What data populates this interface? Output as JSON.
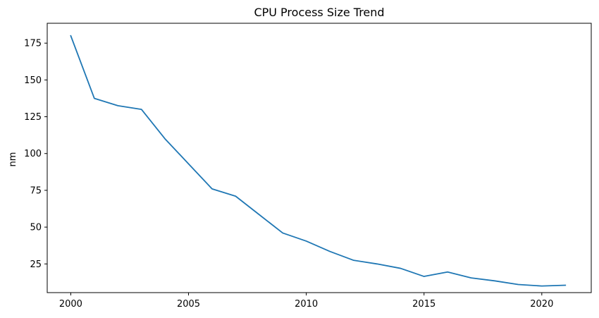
{
  "chart_data": {
    "type": "line",
    "title": "CPU Process Size Trend",
    "xlabel": "",
    "ylabel": "nm",
    "x": [
      2000,
      2001,
      2002,
      2003,
      2004,
      2005,
      2006,
      2007,
      2008,
      2009,
      2010,
      2011,
      2012,
      2013,
      2014,
      2015,
      2016,
      2017,
      2018,
      2019,
      2020,
      2021
    ],
    "series": [
      {
        "values": [
          180,
          137.5,
          132.5,
          130,
          110,
          93,
          76,
          71,
          58.5,
          46,
          40.5,
          33.5,
          27.5,
          25,
          22,
          16.5,
          19.5,
          15.5,
          13.5,
          11,
          10,
          10.5
        ],
        "color": "#1f77b4"
      }
    ],
    "xlim": [
      1999,
      2022.1
    ],
    "ylim": [
      5.5,
      188.5
    ],
    "xticks": [
      2000,
      2005,
      2010,
      2015,
      2020
    ],
    "yticks": [
      25,
      50,
      75,
      100,
      125,
      150,
      175
    ],
    "grid": false,
    "legend": "none"
  }
}
